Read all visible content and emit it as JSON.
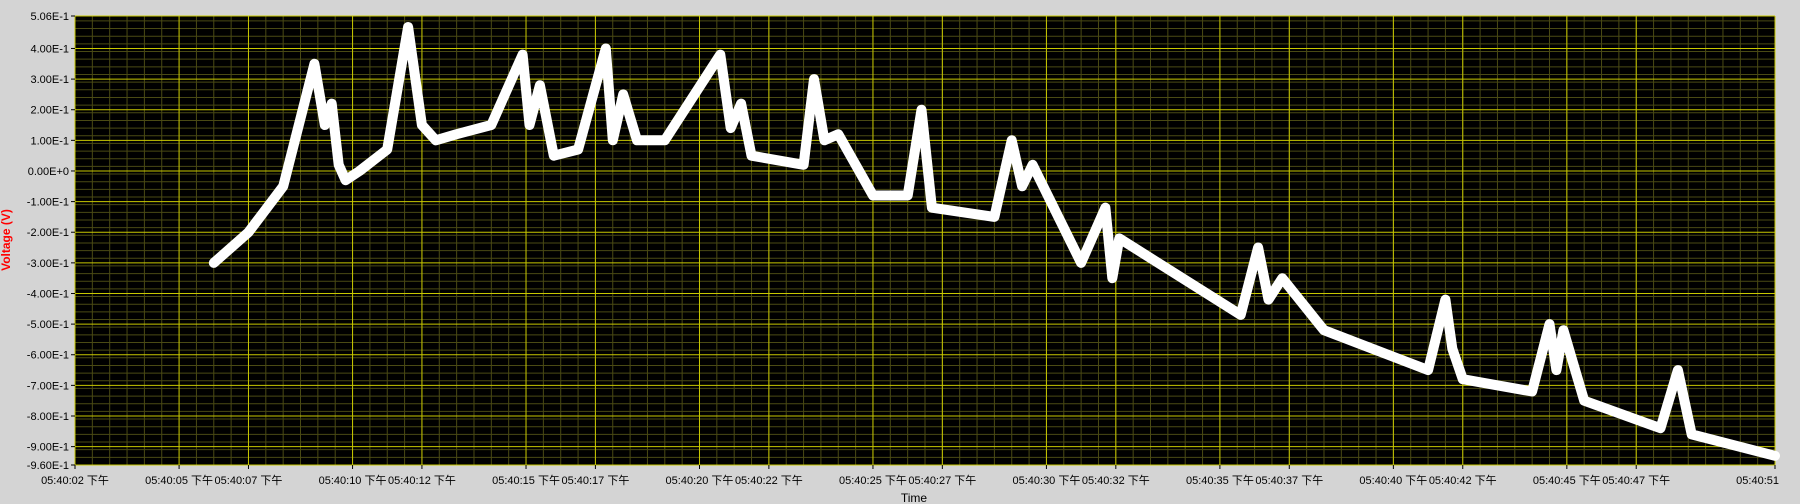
{
  "chart_data": {
    "type": "line",
    "title": "",
    "xlabel": "Time",
    "ylabel": "Voltage (V)",
    "ylim": [
      -0.96,
      0.506
    ],
    "y_ticks": [
      "5.06E-1",
      "4.00E-1",
      "3.00E-1",
      "2.00E-1",
      "1.00E-1",
      "0.00E+0",
      "-1.00E-1",
      "-2.00E-1",
      "-3.00E-1",
      "-4.00E-1",
      "-5.00E-1",
      "-6.00E-1",
      "-7.00E-1",
      "-8.00E-1",
      "-9.00E-1",
      "-9.60E-1"
    ],
    "x_ticks": [
      "05:40:02 下午",
      "05:40:05 下午",
      "05:40:07 下午",
      "05:40:10 下午",
      "05:40:12 下午",
      "05:40:15 下午",
      "05:40:17 下午",
      "05:40:20 下午",
      "05:40:22 下午",
      "05:40:25 下午",
      "05:40:27 下午",
      "05:40:30 下午",
      "05:40:32 下午",
      "05:40:35 下午",
      "05:40:37 下午",
      "05:40:40 下午",
      "05:40:42 下午",
      "05:40:45 下午",
      "05:40:47 下午",
      "05:40:51"
    ],
    "grid": true,
    "colors": {
      "plot_bg": "#000000",
      "major_grid": "#c8c800",
      "minor_grid": "#4a4a14",
      "trace": "#ffffff",
      "frame": "#d4d4d4",
      "ylabel": "#ff0000"
    },
    "series": [
      {
        "x": [
          "05:40:06",
          "05:40:07",
          "05:40:08",
          "05:40:08.9",
          "05:40:09.2",
          "05:40:09.4",
          "05:40:09.6",
          "05:40:09.8",
          "05:40:10.2",
          "05:40:11",
          "05:40:11.6",
          "05:40:12",
          "05:40:12.4",
          "05:40:13",
          "05:40:14",
          "05:40:14.9",
          "05:40:15.1",
          "05:40:15.4",
          "05:40:15.8",
          "05:40:16.5",
          "05:40:17.3",
          "05:40:17.5",
          "05:40:17.8",
          "05:40:18.2",
          "05:40:19",
          "05:40:20.6",
          "05:40:20.9",
          "05:40:21.2",
          "05:40:21.5",
          "05:40:23",
          "05:40:23.3",
          "05:40:23.6",
          "05:40:24",
          "05:40:25",
          "05:40:26",
          "05:40:26.4",
          "05:40:26.7",
          "05:40:28.5",
          "05:40:29",
          "05:40:29.3",
          "05:40:29.6",
          "05:40:31",
          "05:40:31.7",
          "05:40:31.9",
          "05:40:32.1",
          "05:40:35.6",
          "05:40:36.1",
          "05:40:36.4",
          "05:40:36.8",
          "05:40:38",
          "05:40:41",
          "05:40:41.5",
          "05:40:41.7",
          "05:40:42",
          "05:40:44",
          "05:40:44.5",
          "05:40:44.7",
          "05:40:44.9",
          "05:40:45.5",
          "05:40:47.7",
          "05:40:48.2",
          "05:40:48.6",
          "05:40:51"
        ],
        "y": [
          -0.3,
          -0.2,
          -0.05,
          0.35,
          0.15,
          0.22,
          0.02,
          -0.03,
          0.0,
          0.07,
          0.47,
          0.15,
          0.1,
          0.12,
          0.15,
          0.38,
          0.15,
          0.28,
          0.05,
          0.07,
          0.4,
          0.1,
          0.25,
          0.1,
          0.1,
          0.38,
          0.14,
          0.22,
          0.05,
          0.02,
          0.3,
          0.1,
          0.12,
          -0.08,
          -0.08,
          0.2,
          -0.12,
          -0.15,
          0.1,
          -0.05,
          0.02,
          -0.3,
          -0.12,
          -0.35,
          -0.22,
          -0.47,
          -0.25,
          -0.42,
          -0.35,
          -0.52,
          -0.65,
          -0.42,
          -0.58,
          -0.68,
          -0.72,
          -0.5,
          -0.65,
          -0.52,
          -0.75,
          -0.84,
          -0.65,
          -0.86,
          -0.93
        ]
      }
    ]
  }
}
